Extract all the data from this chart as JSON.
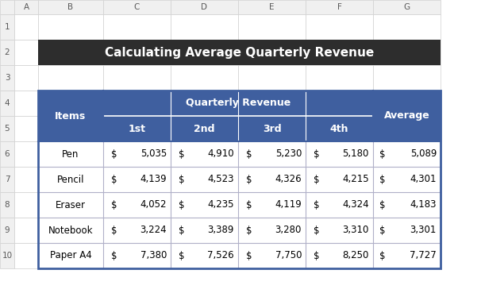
{
  "title": "Calculating Average Quarterly Revenue",
  "title_bg": "#2d2d2d",
  "title_color": "#ffffff",
  "header_bg": "#3f5f9f",
  "header_color": "#ffffff",
  "items": [
    "Pen",
    "Pencil",
    "Eraser",
    "Notebook",
    "Paper A4"
  ],
  "data": [
    [
      5035,
      4910,
      5230,
      5180,
      5089
    ],
    [
      4139,
      4523,
      4326,
      4215,
      4301
    ],
    [
      4052,
      4235,
      4119,
      4324,
      4183
    ],
    [
      3224,
      3389,
      3280,
      3310,
      3301
    ],
    [
      7380,
      7526,
      7750,
      8250,
      7727
    ]
  ],
  "excel_col_labels": [
    "A",
    "B",
    "C",
    "D",
    "E",
    "F",
    "G"
  ],
  "excel_row_labels": [
    "1",
    "2",
    "3",
    "4",
    "5",
    "6",
    "7",
    "8",
    "9",
    "10"
  ],
  "excel_header_bg": "#f0f0f0",
  "excel_header_color": "#595959",
  "cell_bg": "#ffffff",
  "grid_color": "#d0d0d0",
  "table_border": "#3f5f9f",
  "inner_line_color": "#b0b0c8",
  "sub_line_color": "#ffffff"
}
